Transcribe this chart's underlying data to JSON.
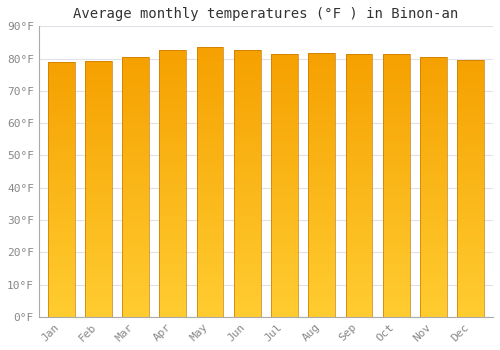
{
  "title": "Average monthly temperatures (°F ) in Binon-an",
  "months": [
    "Jan",
    "Feb",
    "Mar",
    "Apr",
    "May",
    "Jun",
    "Jul",
    "Aug",
    "Sep",
    "Oct",
    "Nov",
    "Dec"
  ],
  "values": [
    78.8,
    79.3,
    80.4,
    82.6,
    83.5,
    82.6,
    81.5,
    81.7,
    81.5,
    81.3,
    80.6,
    79.7
  ],
  "ylim": [
    0,
    90
  ],
  "yticks": [
    0,
    10,
    20,
    30,
    40,
    50,
    60,
    70,
    80,
    90
  ],
  "ytick_labels": [
    "0°F",
    "10°F",
    "20°F",
    "30°F",
    "40°F",
    "50°F",
    "60°F",
    "70°F",
    "80°F",
    "90°F"
  ],
  "bar_color_bottom": "#FFCC30",
  "bar_color_top": "#F5A000",
  "bar_edge_color": "#C87800",
  "background_color": "#FFFFFF",
  "grid_color": "#E0E0E8",
  "title_fontsize": 10,
  "tick_fontsize": 8,
  "figsize": [
    5.0,
    3.5
  ],
  "dpi": 100
}
